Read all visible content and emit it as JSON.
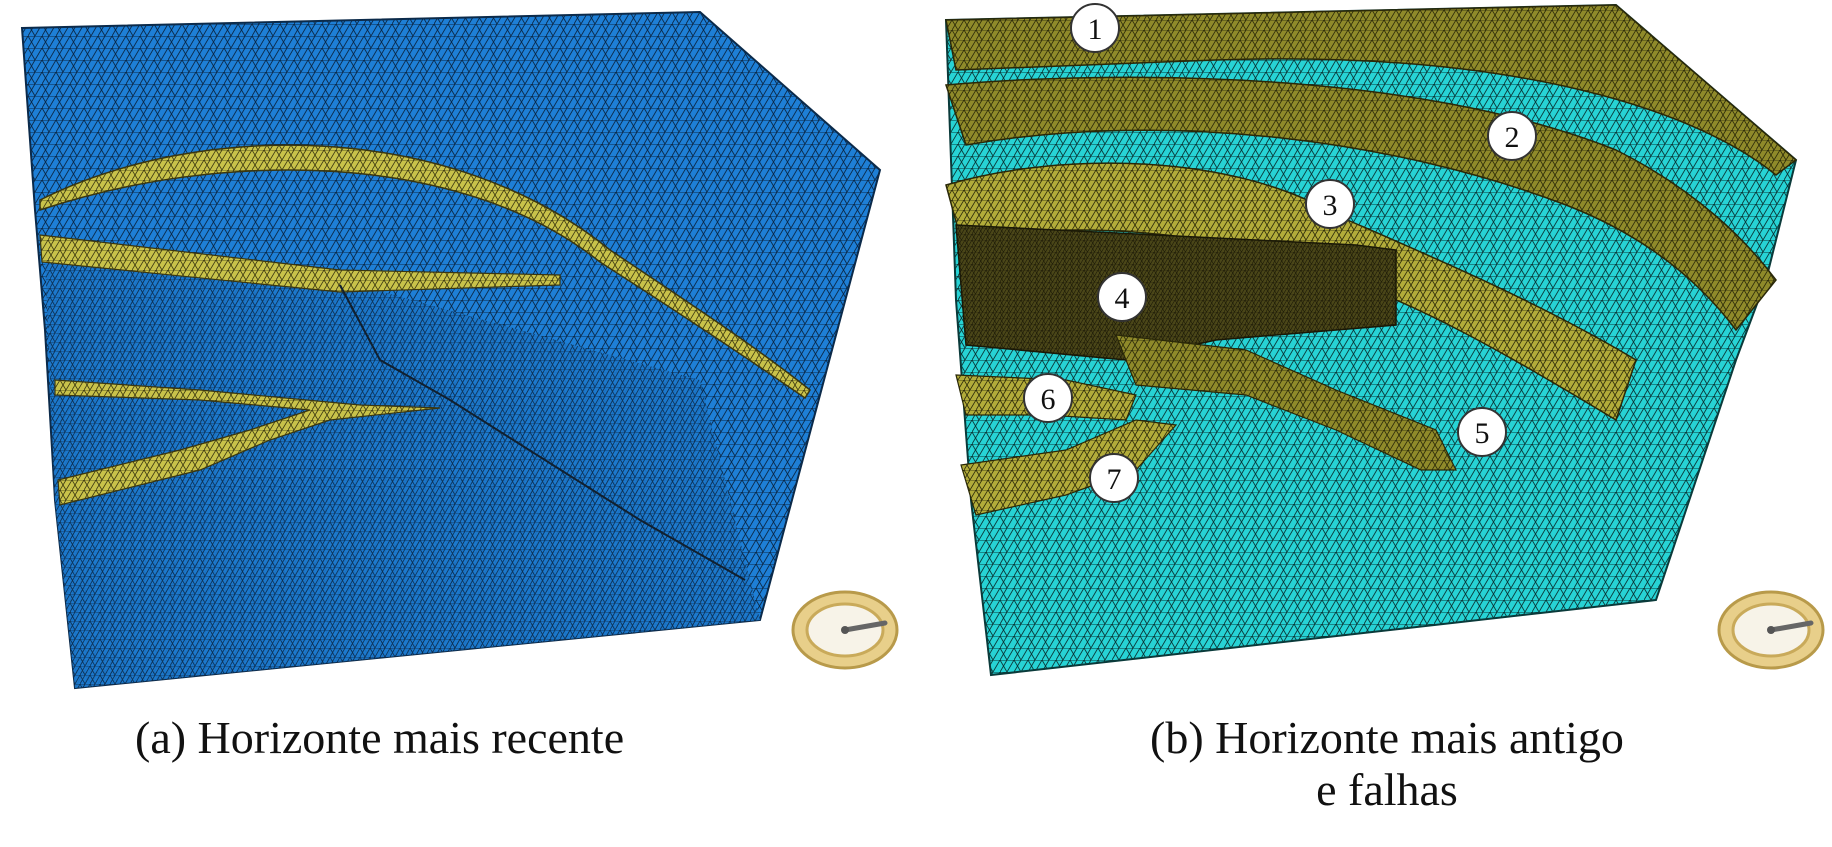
{
  "panels": [
    {
      "id": "a",
      "caption": "(a) Horizonte mais recente",
      "mesh_color": "#1e7fd6",
      "layer_color": "#c8c24a"
    },
    {
      "id": "b",
      "caption_line1": "(b) Horizonte mais antigo",
      "caption_line2": "e falhas",
      "mesh_color": "#27d3d5",
      "layer_color": "#8f8a2a"
    }
  ],
  "markers": [
    "1",
    "2",
    "3",
    "4",
    "5",
    "6",
    "7"
  ],
  "icons": [
    "orientation-gizmo-icon"
  ]
}
